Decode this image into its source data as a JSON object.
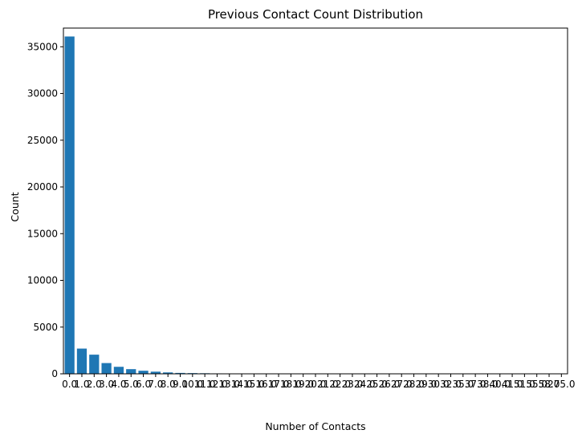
{
  "chart_data": {
    "type": "bar",
    "title": "Previous Contact Count Distribution",
    "xlabel": "Number of Contacts",
    "ylabel": "Count",
    "ylim": [
      0,
      37000
    ],
    "yticks": [
      0,
      5000,
      10000,
      15000,
      20000,
      25000,
      30000,
      35000
    ],
    "ytick_labels": [
      "0",
      "5000",
      "10000",
      "15000",
      "20000",
      "25000",
      "30000",
      "35000"
    ],
    "grid": false,
    "bar_color": "#1f77b4",
    "categories": [
      "0.0",
      "1.0",
      "2.0",
      "3.0",
      "4.0",
      "5.0",
      "6.0",
      "7.0",
      "8.0",
      "9.0",
      "10.0",
      "11.0",
      "12.0",
      "13.0",
      "14.0",
      "15.0",
      "16.0",
      "17.0",
      "18.0",
      "19.0",
      "20.0",
      "21.0",
      "22.0",
      "23.0",
      "24.0",
      "25.0",
      "26.0",
      "27.0",
      "28.0",
      "29.0",
      "30.0",
      "32.0",
      "35.0",
      "37.0",
      "38.0",
      "40.0",
      "41.0",
      "51.0",
      "55.0",
      "58.0",
      "275.0"
    ],
    "values": [
      36100,
      2700,
      2050,
      1150,
      750,
      500,
      330,
      230,
      150,
      95,
      75,
      60,
      45,
      35,
      25,
      20,
      15,
      10,
      8,
      6,
      5,
      4,
      4,
      3,
      3,
      2,
      2,
      2,
      2,
      1,
      1,
      1,
      1,
      1,
      1,
      1,
      1,
      1,
      1,
      1,
      1
    ]
  }
}
